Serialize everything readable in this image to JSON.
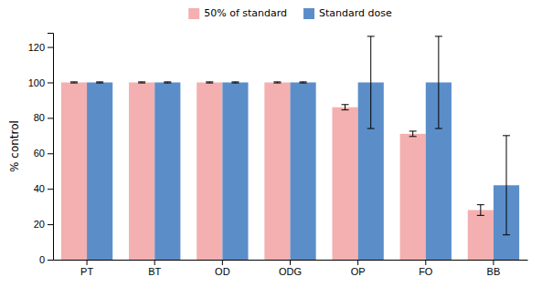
{
  "chart_data": {
    "type": "bar",
    "categories": [
      "PT",
      "BT",
      "OD",
      "ODG",
      "OP",
      "FO",
      "BB"
    ],
    "series": [
      {
        "name": "50% of standard",
        "color": "#f4b0b0",
        "values": [
          100,
          100,
          100,
          100,
          86,
          71,
          28
        ],
        "errors": [
          0.3,
          0.3,
          0.3,
          0.3,
          1.5,
          1.5,
          3
        ]
      },
      {
        "name": "Standard dose",
        "color": "#5b8ec9",
        "values": [
          100,
          100,
          100,
          100,
          100,
          100,
          42
        ],
        "errors": [
          0.3,
          0.3,
          0.3,
          0.3,
          26,
          26,
          28
        ]
      }
    ],
    "ylabel": "% control",
    "ylim": [
      0,
      128
    ],
    "yticks": [
      0,
      20,
      40,
      60,
      80,
      100,
      120
    ],
    "grid": false,
    "legend": "top"
  }
}
